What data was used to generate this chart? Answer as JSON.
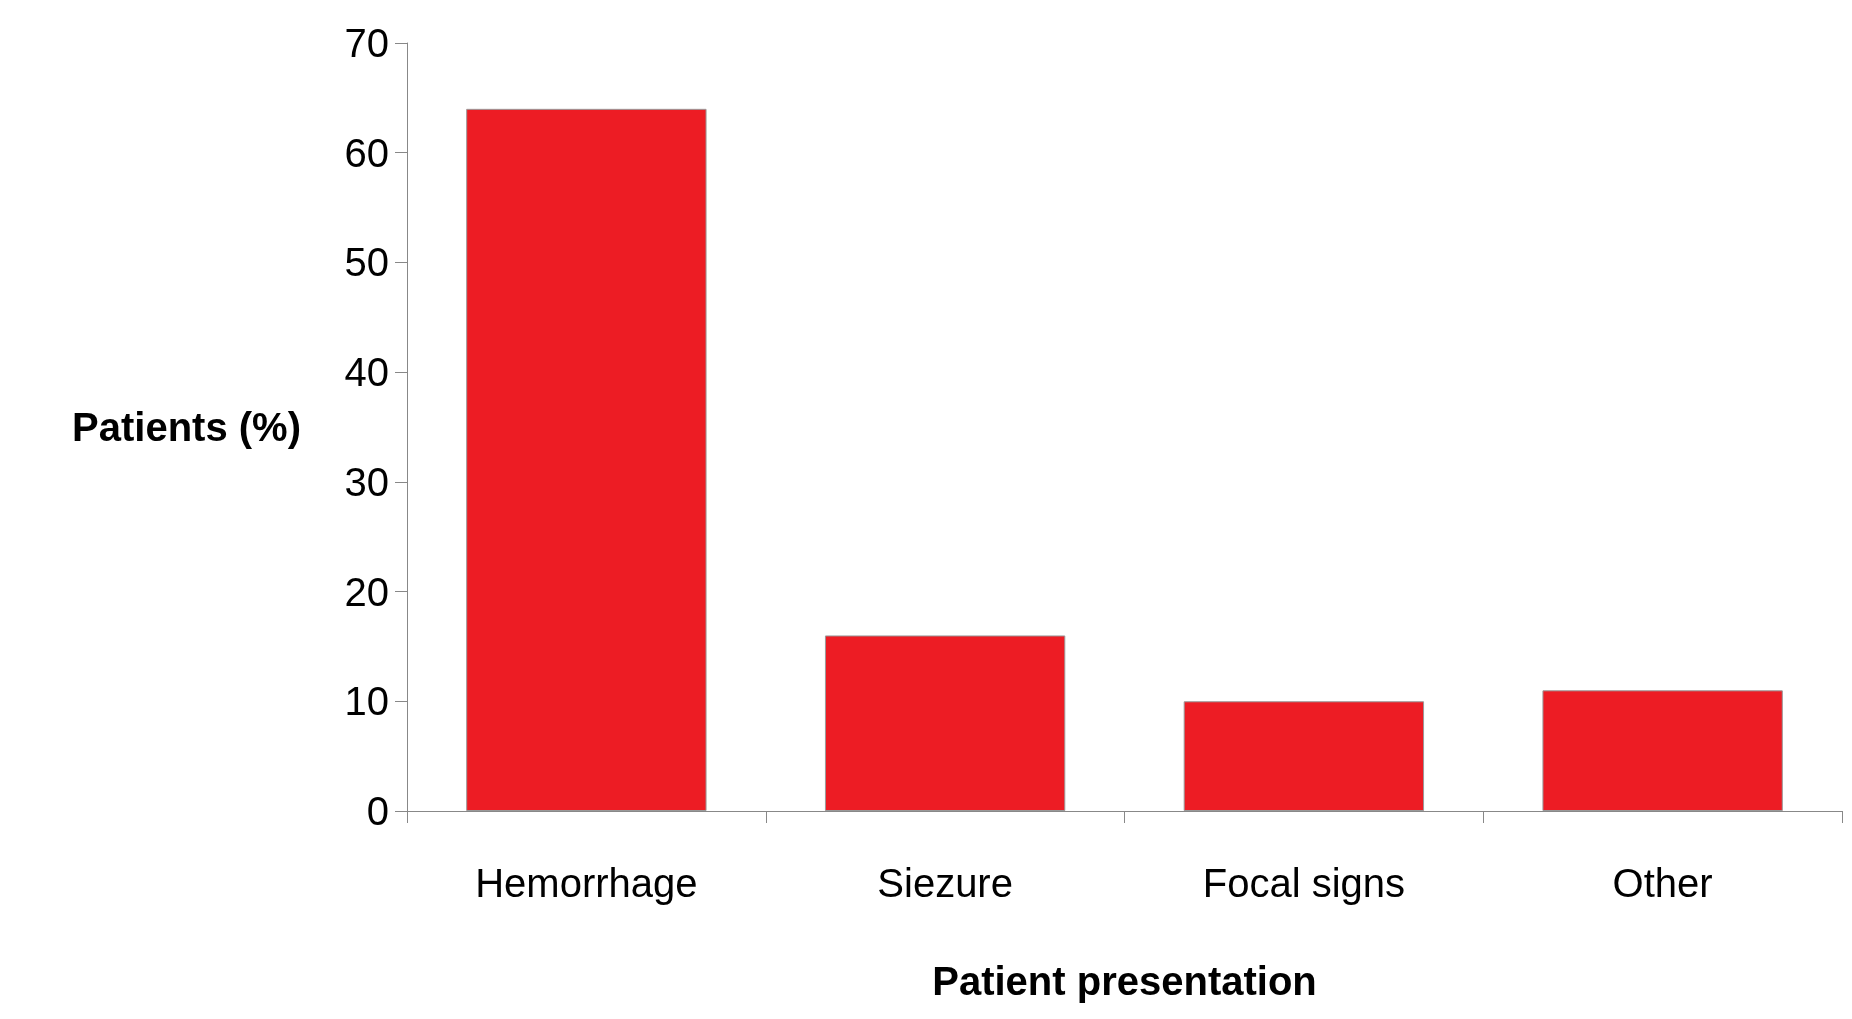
{
  "chart_data": {
    "type": "bar",
    "xlabel": "Patient presentation",
    "ylabel": "Patients (%)",
    "categories": [
      "Hemorrhage",
      "Siezure",
      "Focal signs",
      "Other"
    ],
    "values": [
      64,
      16,
      10,
      11
    ],
    "color": "#ed1c24",
    "ylim": [
      0,
      70
    ],
    "yticks": [
      0,
      10,
      20,
      30,
      40,
      50,
      60,
      70
    ],
    "grid": false
  }
}
